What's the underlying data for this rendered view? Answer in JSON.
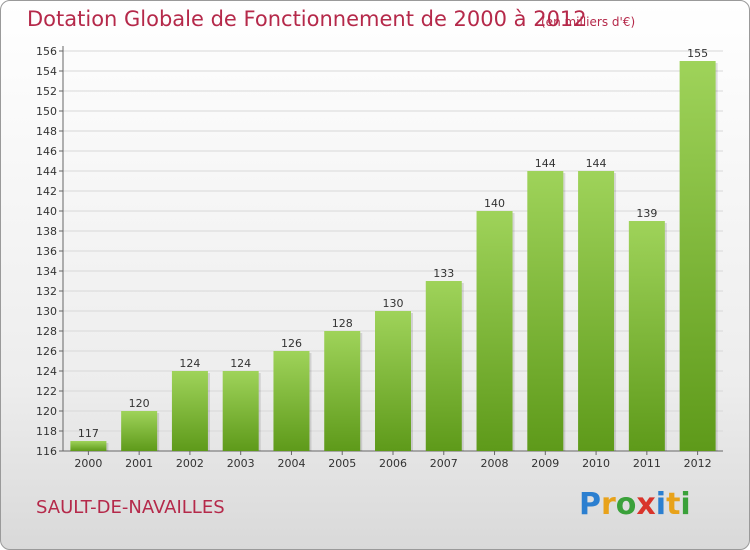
{
  "header": {
    "title": "Dotation Globale de Fonctionnement de 2000 à 2012",
    "unit": "(en milliers d'€)"
  },
  "footer": {
    "commune": "SAULT-DE-NAVAILLES",
    "logo_text": "Proxiti"
  },
  "colors": {
    "title": "#b5294a",
    "bar_top": "#9fd35a",
    "bar_bottom": "#5e9a1a",
    "grid": "#d8d8d8"
  },
  "chart_data": {
    "type": "bar",
    "categories": [
      "2000",
      "2001",
      "2002",
      "2003",
      "2004",
      "2005",
      "2006",
      "2007",
      "2008",
      "2009",
      "2010",
      "2011",
      "2012"
    ],
    "values": [
      117,
      120,
      124,
      124,
      126,
      128,
      130,
      133,
      140,
      144,
      144,
      139,
      155
    ],
    "title": "Dotation Globale de Fonctionnement de 2000 à 2012",
    "xlabel": "",
    "ylabel": "",
    "ylim": [
      116,
      156
    ],
    "yticks": [
      116,
      118,
      120,
      122,
      124,
      126,
      128,
      130,
      132,
      134,
      136,
      138,
      140,
      142,
      144,
      146,
      148,
      150,
      152,
      154,
      156
    ],
    "grid": true,
    "data_labels": true
  }
}
